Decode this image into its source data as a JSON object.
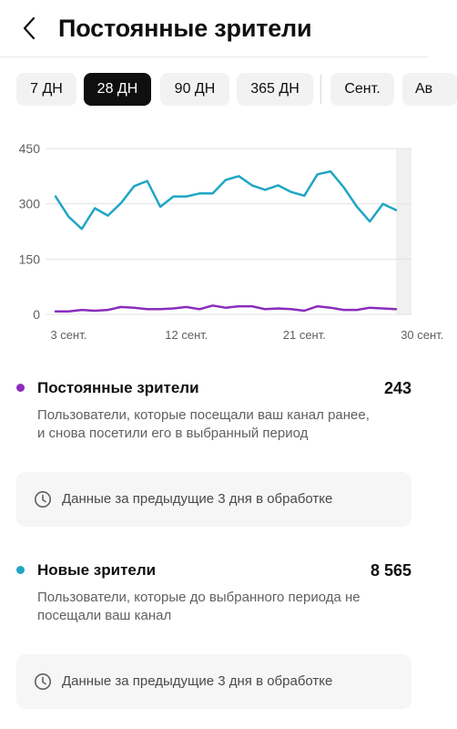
{
  "header": {
    "title": "Постоянные зрители"
  },
  "periods": [
    {
      "label": "7 ДН",
      "active": false
    },
    {
      "label": "28 ДН",
      "active": true
    },
    {
      "label": "90 ДН",
      "active": false
    },
    {
      "label": "365 ДН",
      "active": false
    },
    {
      "label": "Сент.",
      "active": false
    },
    {
      "label": "Ав",
      "active": false
    }
  ],
  "chart_data": {
    "type": "line",
    "ylim": [
      0,
      450
    ],
    "y_ticks": [
      0,
      150,
      300,
      450
    ],
    "x_tick_labels": [
      "3 сент.",
      "12 сент.",
      "21 сент.",
      "30 сент."
    ],
    "x_tick_index": [
      1,
      10,
      19,
      28
    ],
    "grid": true,
    "series": [
      {
        "color": "#20a6c4",
        "values": [
          320,
          265,
          232,
          288,
          268,
          302,
          348,
          362,
          292,
          320,
          320,
          328,
          328,
          365,
          375,
          350,
          338,
          350,
          332,
          322,
          380,
          388,
          345,
          293,
          252,
          300,
          283
        ]
      },
      {
        "color": "#8a2cbd",
        "values": [
          8,
          8,
          12,
          10,
          12,
          20,
          18,
          14,
          14,
          16,
          20,
          14,
          24,
          18,
          22,
          22,
          14,
          16,
          14,
          10,
          22,
          18,
          12,
          12,
          18,
          16,
          14
        ]
      }
    ]
  },
  "metrics": {
    "returning": {
      "title": "Постоянные зрители",
      "value": "243",
      "color": "#8a2cbd",
      "desc_line1": "Пользователи, которые посещали ваш канал ранее,",
      "desc_line2": "и снова посетили его в выбранный период",
      "notice": "Данные за предыдущие 3 дня в обработке"
    },
    "new": {
      "title": "Новые зрители",
      "value": "8 565",
      "color": "#20a6c4",
      "desc_line1": "Пользователи, которые до выбранного периода не",
      "desc_line2": "посещали ваш канал",
      "notice": "Данные за предыдущие 3 дня в обработке"
    }
  }
}
